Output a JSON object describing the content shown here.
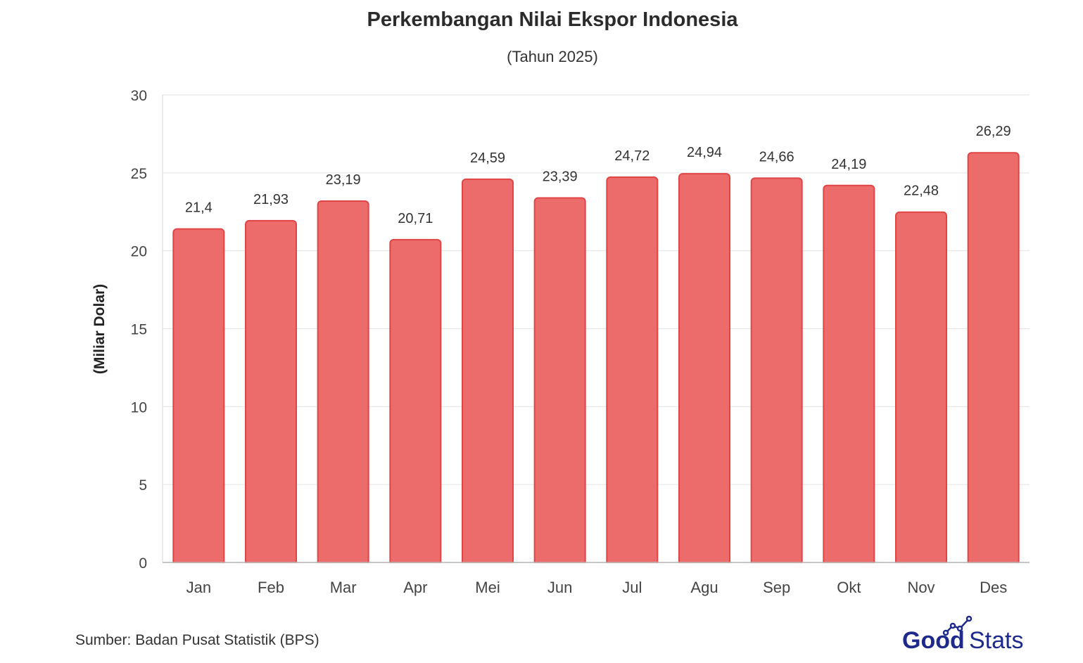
{
  "title": "Perkembangan Nilai Ekspor Indonesia",
  "subtitle": "(Tahun 2025)",
  "source": "Sumber: Badan Pusat Statistik (BPS)",
  "logo": {
    "text_good": "Good",
    "text_stats": "Stats",
    "good_color": "#1d2a8c",
    "stats_color": "#1d2a8c"
  },
  "chart_data": {
    "type": "bar",
    "title": "Perkembangan Nilai Ekspor Indonesia",
    "subtitle": "(Tahun 2025)",
    "xlabel": "",
    "ylabel": "(Miliar Dolar)",
    "categories": [
      "Jan",
      "Feb",
      "Mar",
      "Apr",
      "Mei",
      "Jun",
      "Jul",
      "Agu",
      "Sep",
      "Okt",
      "Nov",
      "Des"
    ],
    "values": [
      21.4,
      21.93,
      23.19,
      20.71,
      24.59,
      23.39,
      24.72,
      24.94,
      24.66,
      24.19,
      22.48,
      26.29
    ],
    "data_labels": [
      "21,4",
      "21,93",
      "23,19",
      "20,71",
      "24,59",
      "23,39",
      "24,72",
      "24,94",
      "24,66",
      "24,19",
      "22,48",
      "26,29"
    ],
    "ylim": [
      0,
      30
    ],
    "yticks": [
      0,
      5,
      10,
      15,
      20,
      25,
      30
    ],
    "grid": true,
    "bar_color": "#ec6b6b",
    "bar_border_color": "#e04545"
  }
}
